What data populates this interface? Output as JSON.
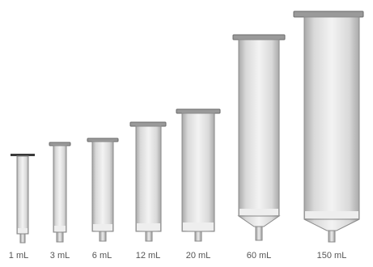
{
  "figure": {
    "columns": [
      {
        "label": "1 mL"
      },
      {
        "label": "3 mL"
      },
      {
        "label": "6 mL"
      },
      {
        "label": "12 mL"
      },
      {
        "label": "20 mL"
      },
      {
        "label": "60 mL"
      },
      {
        "label": "150 mL"
      }
    ],
    "colors": {
      "barrel_light": "#f3f3f3",
      "barrel_mid": "#d9d9d9",
      "barrel_dark": "#a9a9a9",
      "outline": "#8a8a8a",
      "flange": "#9a9a9a",
      "flange_dark": "#3a3a3a",
      "frit": "#eeeeee",
      "label": "#555555"
    }
  }
}
